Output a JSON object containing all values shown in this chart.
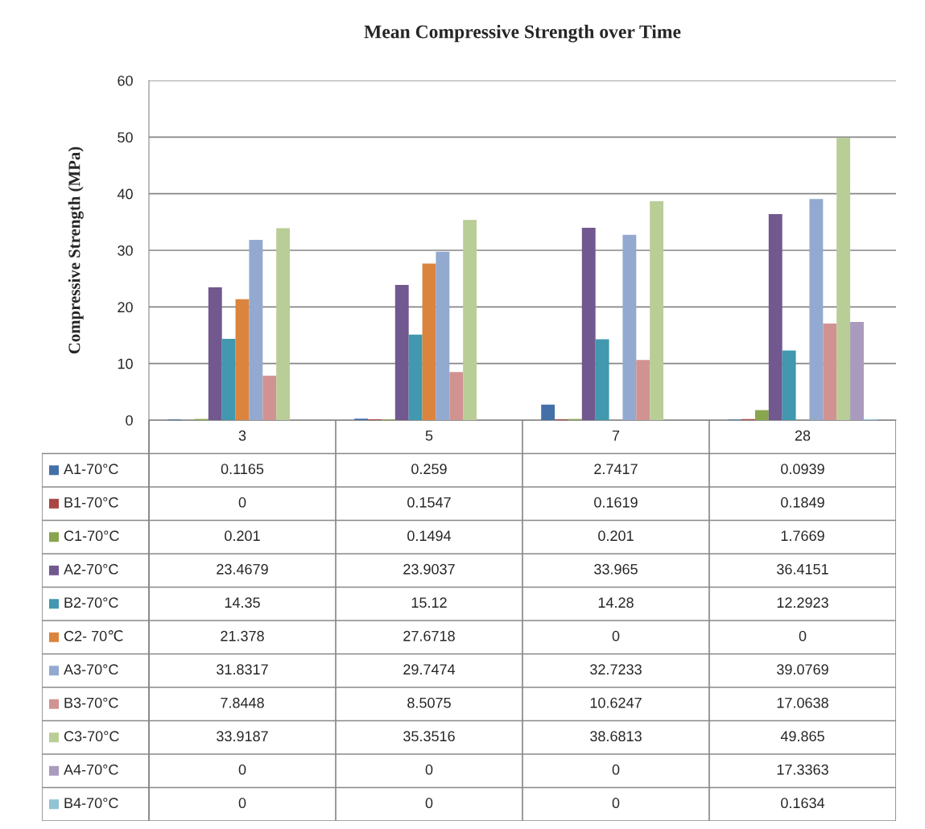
{
  "chart_data": {
    "type": "bar",
    "title": "Mean Compressive Strength over Time",
    "ylabel": "Compressive Strength (MPa)",
    "categories": [
      "3",
      "5",
      "7",
      "28"
    ],
    "series": [
      {
        "name": "A1-70°C",
        "color": "#4470a8",
        "values": [
          0.1165,
          0.259,
          2.7417,
          0.0939
        ]
      },
      {
        "name": "B1-70°C",
        "color": "#a94644",
        "values": [
          0,
          0.1547,
          0.1619,
          0.1849
        ]
      },
      {
        "name": "C1-70°C",
        "color": "#89a54e",
        "values": [
          0.201,
          0.1494,
          0.201,
          1.7669
        ]
      },
      {
        "name": "A2-70°C",
        "color": "#71588f",
        "values": [
          23.4679,
          23.9037,
          33.965,
          36.4151
        ]
      },
      {
        "name": "B2-70°C",
        "color": "#4198af",
        "values": [
          14.35,
          15.12,
          14.28,
          12.2923
        ]
      },
      {
        "name": "C2- 70℃",
        "color": "#db843d",
        "values": [
          21.378,
          27.6718,
          0,
          0
        ]
      },
      {
        "name": "A3-70°C",
        "color": "#93a9cf",
        "values": [
          31.8317,
          29.7474,
          32.7233,
          39.0769
        ]
      },
      {
        "name": "B3-70°C",
        "color": "#d19392",
        "values": [
          7.8448,
          8.5075,
          10.6247,
          17.0638
        ]
      },
      {
        "name": "C3-70°C",
        "color": "#b9cd96",
        "values": [
          33.9187,
          35.3516,
          38.6813,
          49.865
        ]
      },
      {
        "name": "A4-70°C",
        "color": "#a99bbd",
        "values": [
          0,
          0,
          0,
          17.3363
        ]
      },
      {
        "name": "B4-70°C",
        "color": "#91c3d5",
        "values": [
          0,
          0,
          0,
          0.1634
        ]
      }
    ],
    "ylim": [
      0,
      60
    ],
    "yticks": [
      0,
      10,
      20,
      30,
      40,
      50,
      60
    ],
    "grid": "y",
    "legend": "bottom",
    "data_labels": true
  }
}
